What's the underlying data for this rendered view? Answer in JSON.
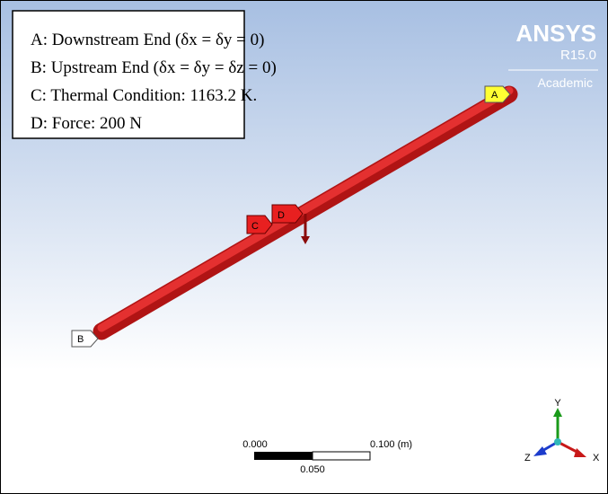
{
  "legend": {
    "lines": [
      "A: Downstream End (δx = δy = 0)",
      "B: Upstream End (δx = δy = δz = 0)",
      "C: Thermal Condition: 1163.2 K.",
      "D: Force: 200 N"
    ]
  },
  "logo": {
    "brand": "ANSYS",
    "version": "R15.0",
    "edition": "Academic"
  },
  "markers": [
    "A",
    "B",
    "C",
    "D"
  ],
  "scale_bar": {
    "left": "0.000",
    "right": "0.100 (m)",
    "middle": "0.050"
  },
  "triad": {
    "x": "X",
    "y": "Y",
    "z": "Z"
  }
}
